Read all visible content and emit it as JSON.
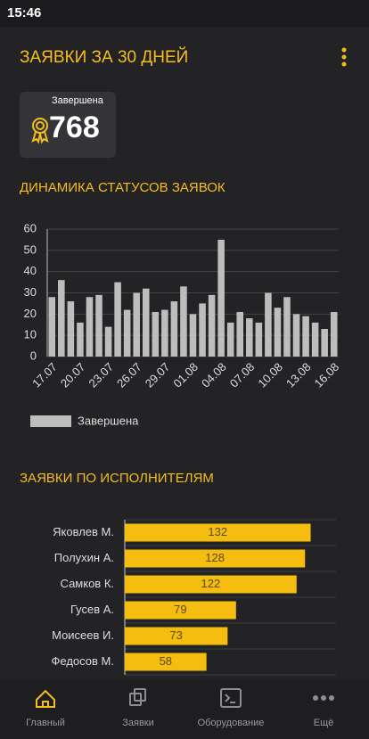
{
  "status_bar": {
    "time": "15:46"
  },
  "header": {
    "title": "ЗАЯВКИ ЗА 30 ДНЕЙ"
  },
  "summary": {
    "label": "Завершена",
    "value": 768
  },
  "chart_data": [
    {
      "type": "bar",
      "title": "ДИНАМИКА СТАТУСОВ ЗАЯВОК",
      "categories": [
        "17.07",
        null,
        null,
        "20.07",
        null,
        null,
        "23.07",
        null,
        null,
        "26.07",
        null,
        null,
        "29.07",
        null,
        null,
        "01.08",
        null,
        null,
        "04.08",
        null,
        null,
        "07.08",
        null,
        null,
        "10.08",
        null,
        null,
        "13.08",
        null,
        null,
        "16.08"
      ],
      "series": [
        {
          "name": "Завершена",
          "color": "#bdbdbd",
          "values": [
            28,
            36,
            26,
            16,
            28,
            29,
            14,
            35,
            22,
            30,
            32,
            21,
            22,
            26,
            33,
            20,
            25,
            29,
            55,
            16,
            21,
            18,
            16,
            30,
            23,
            28,
            20,
            19,
            16,
            13,
            21
          ]
        }
      ],
      "ylim": [
        0,
        60
      ],
      "yticks": [
        0,
        10,
        20,
        30,
        40,
        50,
        60
      ],
      "grid": true,
      "legend": "bottom-left"
    },
    {
      "type": "barh",
      "title": "ЗАЯВКИ ПО ИСПОЛНИТЕЛЯМ",
      "categories": [
        "Яковлев М.",
        "Полухин А.",
        "Самков К.",
        "Гусев А.",
        "Моисеев И.",
        "Федосов М."
      ],
      "values": [
        132,
        128,
        122,
        79,
        73,
        58
      ],
      "color": "#f5bd0f",
      "xlim": [
        0,
        150
      ],
      "grid": true
    }
  ],
  "nav": {
    "items": [
      "Главный",
      "Заявки",
      "Оборудование",
      "Ещё"
    ]
  }
}
